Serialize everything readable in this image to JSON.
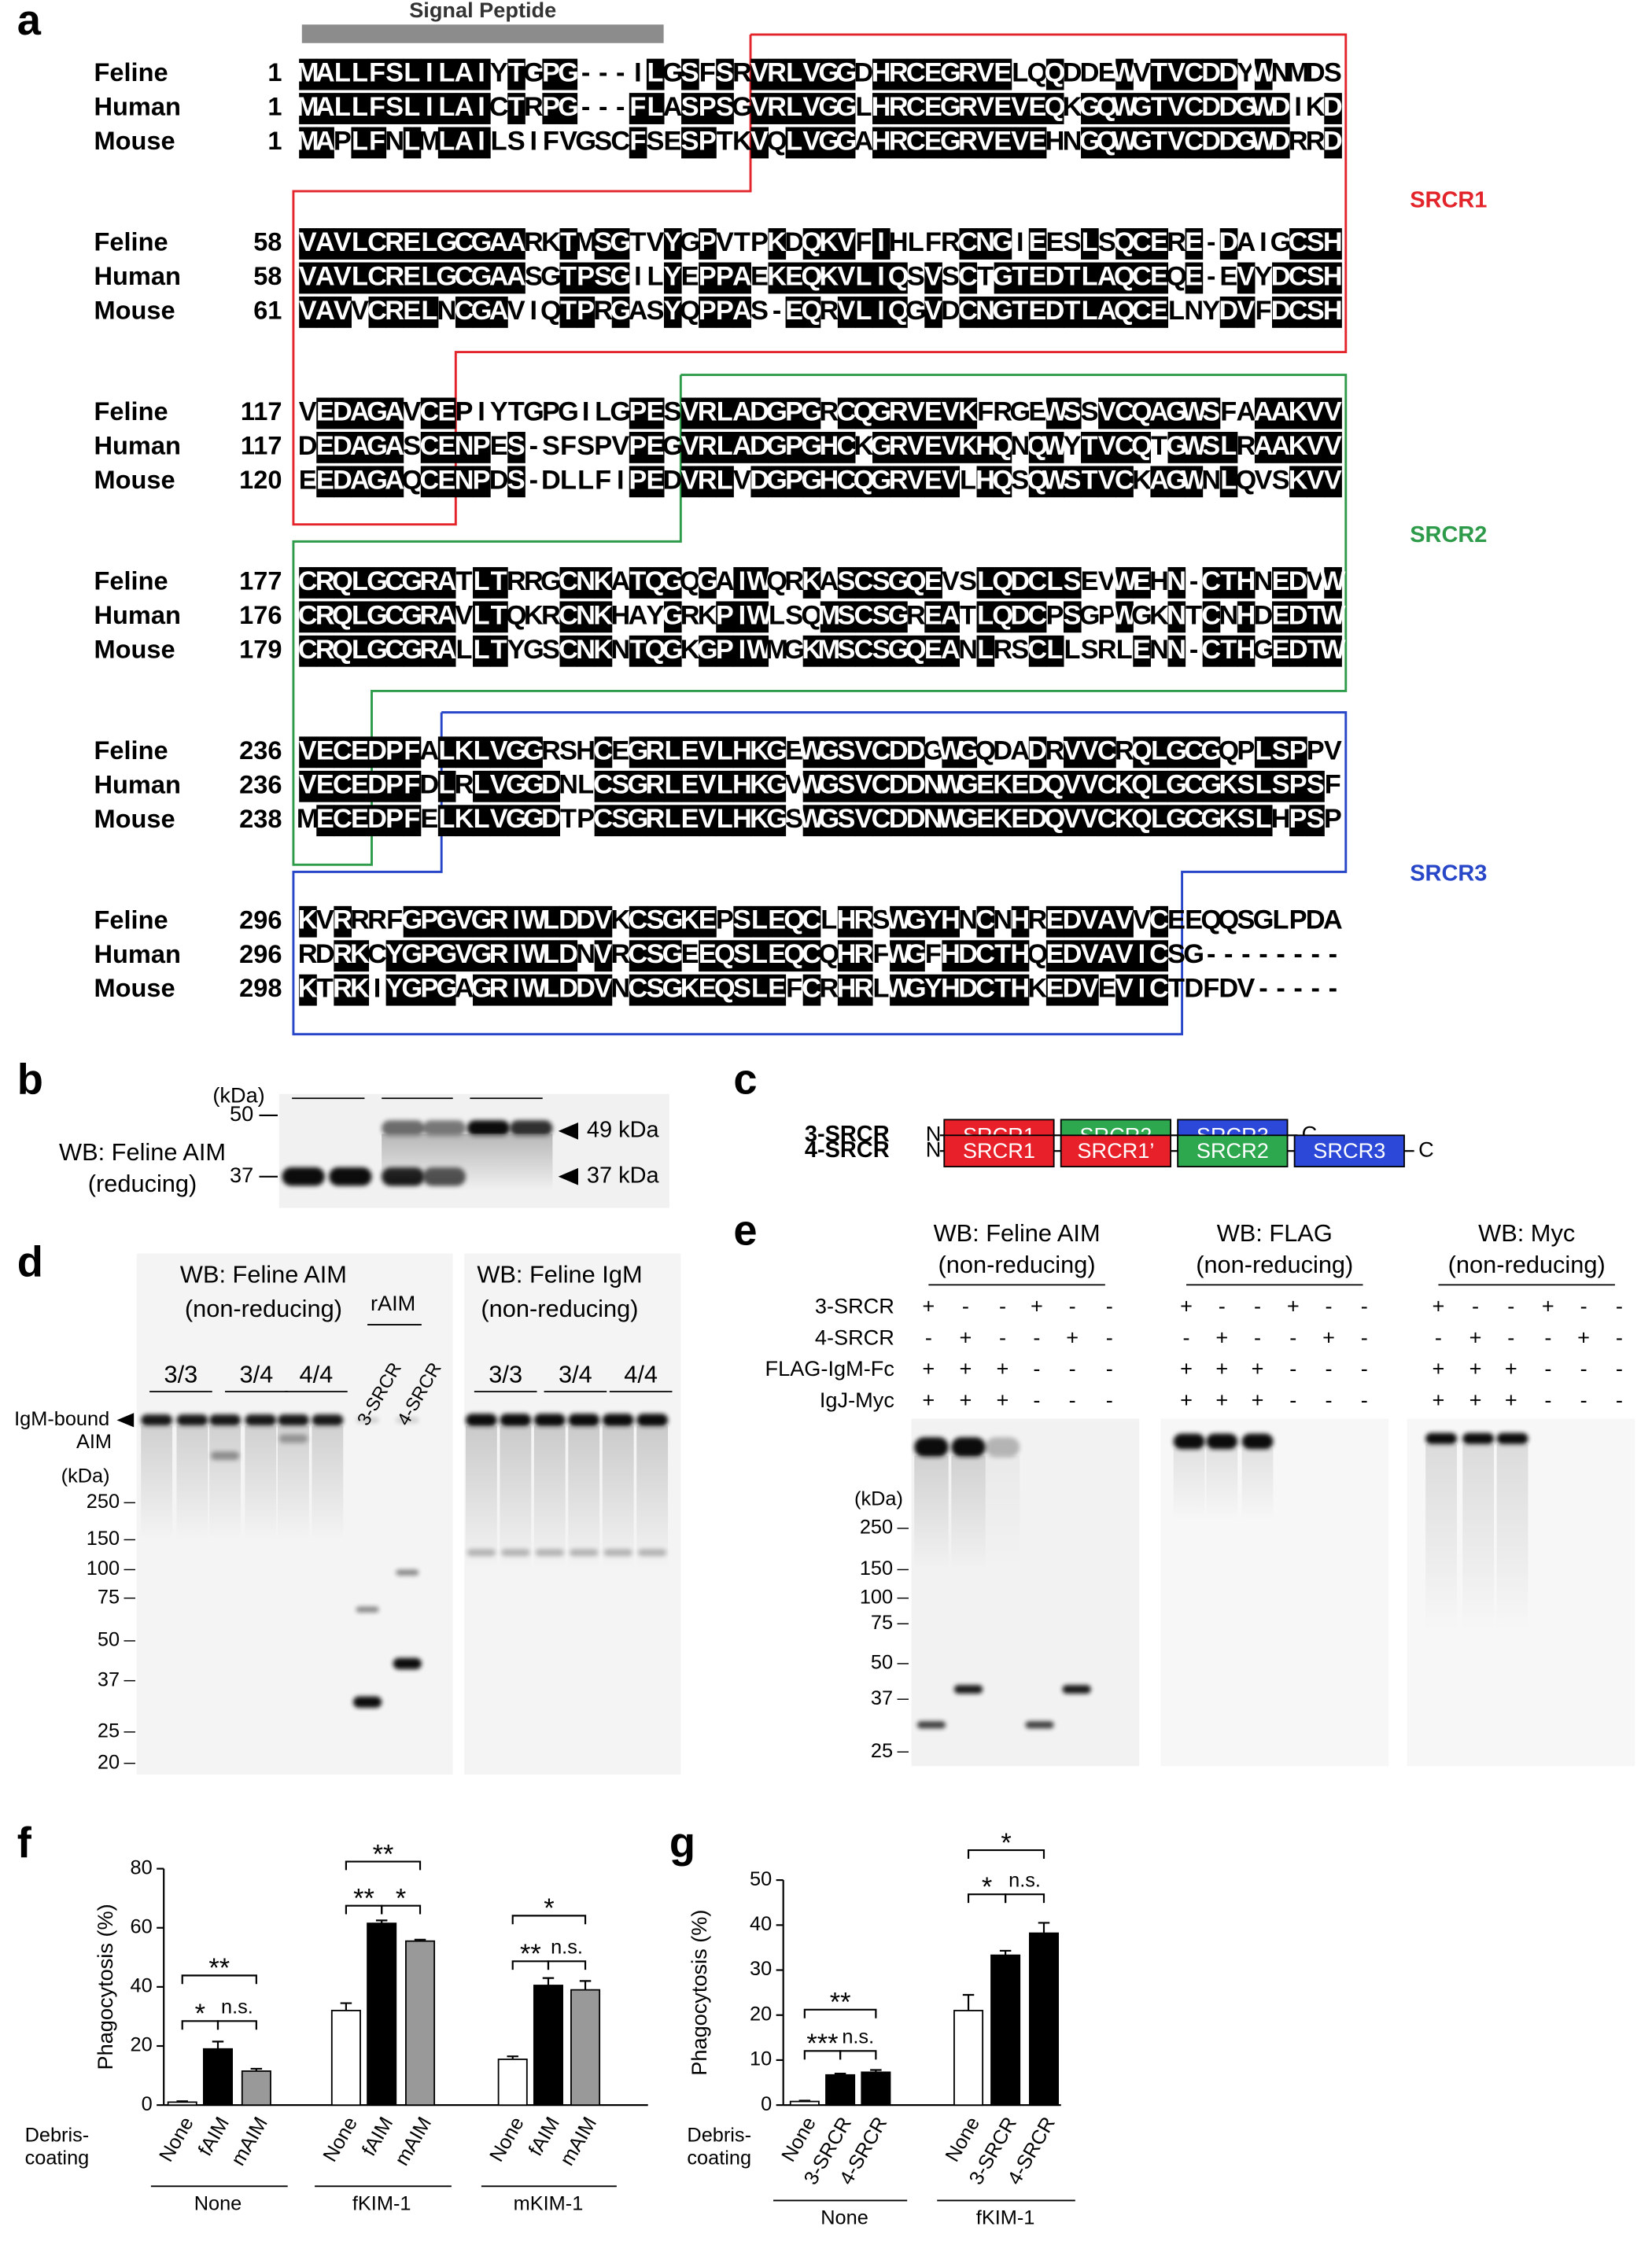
{
  "panel_labels": [
    "a",
    "b",
    "c",
    "d",
    "e",
    "f",
    "g"
  ],
  "alignment": {
    "signal_peptide": "Signal Peptide",
    "domains": [
      "SRCR1",
      "SRCR2",
      "SRCR3"
    ],
    "domain_colors": [
      "#e3242b",
      "#2e9b4a",
      "#2846c8"
    ],
    "blocks": [
      [
        {
          "species": "Feline",
          "start": 1,
          "seq": "MALLFSLILAIYTGPG---ILGSFSRVRLVGGDHRCEGRVELQQDDEWVTVCDDYWNMDS"
        },
        {
          "species": "Human",
          "start": 1,
          "seq": "MALLFSLILAICTRPG---FLASPSGVRLVGGLHRCEGRVEVEQKGQWGTVCDDGWDIKD"
        },
        {
          "species": "Mouse",
          "start": 1,
          "seq": "MAPLFNLMLAILSIFVGSCFSESPTKVQLVGGAHRCEGRVEVEHNGQWGTVCDDGWDRRD"
        }
      ],
      [
        {
          "species": "Feline",
          "start": 58,
          "seq": "VAVLCRELGCGAARKTMSGTVYGPVTPKDQKVFIHLFRCNGIEESLSQCERE-DAIGCSH"
        },
        {
          "species": "Human",
          "start": 58,
          "seq": "VAVLCRELGCGAASGTPSGILYEPPAEKEQKVLIQSVSCTGTEDTLAQCEQE-EVYDCSH"
        },
        {
          "species": "Mouse",
          "start": 61,
          "seq": "VAVVCRELNCGAVIQTPRGASYQPPAS-EQRVLIQGVDCNGTEDTLAQCELNYDVFDCSH"
        }
      ],
      [
        {
          "species": "Feline",
          "start": 117,
          "seq": "VEDAGAVCEPIYTGPGILGPESVRLADGPGRCQGRVEVKFRGEWSSVCQAGWSFAAAKVV"
        },
        {
          "species": "Human",
          "start": 117,
          "seq": "DEDAGASCENPES-SFSPVPEGVRLADGPGHCKGRVEVKHQNQWYTVCQTGWSLRAAKVV"
        },
        {
          "species": "Mouse",
          "start": 120,
          "seq": "EEDAGAQCENPDS-DLLFIPEDVRLVDGPGHCQGRVEVLHQSQWSTVCKAGWNLQVSKVV"
        }
      ],
      [
        {
          "species": "Feline",
          "start": 177,
          "seq": "CRQLGCGRATLTRRGCNKATQGQGAIWQRKASCSGQEVSLQDCLSEVWEHN-CTHNEDVW"
        },
        {
          "species": "Human",
          "start": 176,
          "seq": "CRQLGCGRAVLTQKRCNKHAYGRKPIWLSQMSCSGREATLQDCPSGPWGKNTCNHDEDTW"
        },
        {
          "species": "Mouse",
          "start": 179,
          "seq": "CRQLGCGRALLTYGSCNKNTQGKGPIWMGKMSCSGQEANLRSCLLSRLENN-CTHGEDTW"
        }
      ],
      [
        {
          "species": "Feline",
          "start": 236,
          "seq": "VECEDPFALKLVGGRSHCEGRLEVLHKGEWGSVCDDGWGQDADRVVCRQLGCGQPLSPPV"
        },
        {
          "species": "Human",
          "start": 236,
          "seq": "VECEDPFDLRLVGGDNLCSGRLEVLHKGVWGSVCDDNWGEKEDQVVCKQLGCGKSLSPSF"
        },
        {
          "species": "Mouse",
          "start": 238,
          "seq": "MECEDPFELKLVGGDTPCSGRLEVLHKGSWGSVCDDNWGEKEDQVVCKQLGCGKSLHPSP"
        }
      ],
      [
        {
          "species": "Feline",
          "start": 296,
          "seq": "KVRRRFGPGVGRIWLDDVKCSGKEPSLEQCLHRSWGYHNCNHREDVAVVCEEQQSGLPDA"
        },
        {
          "species": "Human",
          "start": 296,
          "seq": "RDRKCYGPGVGRIWLDNVRCSGEEQSLEQCQHRFWGFHDCTHQEDVAVICSG--------"
        },
        {
          "species": "Mouse",
          "start": 298,
          "seq": "KTRKIYGPGAGRIWLDDVNCSGKEQSLEFCRHRLWGYHDCTHKEDVEVICTDFDV-----"
        }
      ]
    ]
  },
  "panel_b": {
    "kda": "(kDa)",
    "markers": [
      "50",
      "37"
    ],
    "label": [
      "WB: Feline AIM",
      "(reducing)"
    ],
    "arrows": [
      "49 kDa",
      "37 kDa"
    ]
  },
  "panel_c": {
    "constructs": [
      {
        "name": "3-SRCR",
        "n": "N",
        "domains": [
          "SRCR1",
          "SRCR2",
          "SRCR3"
        ],
        "colors": [
          "#e8202a",
          "#2ea84f",
          "#2b48d8"
        ],
        "c": "C"
      },
      {
        "name": "4-SRCR",
        "n": "N",
        "domains": [
          "SRCR1",
          "SRCR1’",
          "SRCR2",
          "SRCR3"
        ],
        "colors": [
          "#e8202a",
          "#e8202a",
          "#2ea84f",
          "#2b48d8"
        ],
        "c": "C"
      }
    ]
  },
  "panel_d": {
    "blots": [
      {
        "title": [
          "WB: Feline AIM",
          "(non-reducing)"
        ],
        "groups": [
          "3/3",
          "3/4",
          "4/4"
        ],
        "extra_group": "rAIM",
        "extra_lanes": [
          "3-SRCR",
          "4-SRCR"
        ]
      },
      {
        "title": [
          "WB: Feline IgM",
          "(non-reducing)"
        ],
        "groups": [
          "3/3",
          "3/4",
          "4/4"
        ]
      }
    ],
    "band_label": [
      "IgM-bound",
      "AIM"
    ],
    "kda": "(kDa)",
    "markers": [
      "250",
      "150",
      "100",
      "75",
      "50",
      "37",
      "25",
      "20"
    ]
  },
  "panel_e": {
    "row_labels": [
      "3-SRCR",
      "4-SRCR",
      "FLAG-IgM-Fc",
      "IgJ-Myc"
    ],
    "kda": "(kDa)",
    "markers": [
      "250",
      "150",
      "100",
      "75",
      "50",
      "37",
      "25"
    ],
    "blots": [
      {
        "title": [
          "WB: Feline AIM",
          "(non-reducing)"
        ],
        "signs": [
          [
            "+",
            "-",
            "-",
            "+",
            "-",
            "-"
          ],
          [
            "-",
            "+",
            "-",
            "-",
            "+",
            "-"
          ],
          [
            "+",
            "+",
            "+",
            "-",
            "-",
            "-"
          ],
          [
            "+",
            "+",
            "+",
            "-",
            "-",
            "-"
          ]
        ]
      },
      {
        "title": [
          "WB: FLAG",
          "(non-reducing)"
        ],
        "signs": [
          [
            "+",
            "-",
            "-",
            "+",
            "-",
            "-"
          ],
          [
            "-",
            "+",
            "-",
            "-",
            "+",
            "-"
          ],
          [
            "+",
            "+",
            "+",
            "-",
            "-",
            "-"
          ],
          [
            "+",
            "+",
            "+",
            "-",
            "-",
            "-"
          ]
        ]
      },
      {
        "title": [
          "WB: Myc",
          "(non-reducing)"
        ],
        "signs": [
          [
            "+",
            "-",
            "-",
            "+",
            "-",
            "-"
          ],
          [
            "-",
            "+",
            "-",
            "-",
            "+",
            "-"
          ],
          [
            "+",
            "+",
            "+",
            "-",
            "-",
            "-"
          ],
          [
            "+",
            "+",
            "+",
            "-",
            "-",
            "-"
          ]
        ]
      }
    ]
  },
  "chart_data": [
    {
      "type": "bar",
      "y_label": "Phagocytosis (%)",
      "x_label": [
        "Debris-",
        "coating"
      ],
      "groups": [
        "None",
        "fKIM-1",
        "mKIM-1"
      ],
      "categories": [
        "None",
        "fAIM",
        "mAIM",
        "None",
        "fAIM",
        "mAIM",
        "None",
        "fAIM",
        "mAIM"
      ],
      "values": [
        1,
        19,
        11.5,
        32,
        61.5,
        55.5,
        15.5,
        40.5,
        39
      ],
      "errors": [
        0.3,
        2.5,
        0.8,
        2.5,
        1,
        0.5,
        1,
        2.5,
        3
      ],
      "colors": [
        "#ffffff",
        "#000000",
        "#999999",
        "#ffffff",
        "#000000",
        "#999999",
        "#ffffff",
        "#000000",
        "#999999"
      ],
      "ylim": [
        0,
        80
      ],
      "yticks": [
        0,
        20,
        40,
        60,
        80
      ],
      "significance": [
        "**",
        "*",
        "n.s.",
        "**",
        "**",
        "*",
        "*",
        "**",
        "n.s."
      ]
    },
    {
      "type": "bar",
      "y_label": "Phagocytosis (%)",
      "x_label": [
        "Debris-",
        "coating"
      ],
      "groups": [
        "None",
        "fKIM-1"
      ],
      "categories": [
        "None",
        "3-SRCR",
        "4-SRCR",
        "None",
        "3-SRCR",
        "4-SRCR"
      ],
      "values": [
        0.8,
        6.7,
        7.3,
        21,
        33.3,
        38.2
      ],
      "errors": [
        0.2,
        0.3,
        0.5,
        3.5,
        1,
        2.3
      ],
      "colors": [
        "#ffffff",
        "#000000",
        "#000000",
        "#ffffff",
        "#000000",
        "#000000"
      ],
      "ylim": [
        0,
        50
      ],
      "yticks": [
        0,
        10,
        20,
        30,
        40,
        50
      ],
      "significance": [
        "**",
        "***",
        "n.s.",
        "*",
        "*",
        "n.s."
      ]
    }
  ]
}
